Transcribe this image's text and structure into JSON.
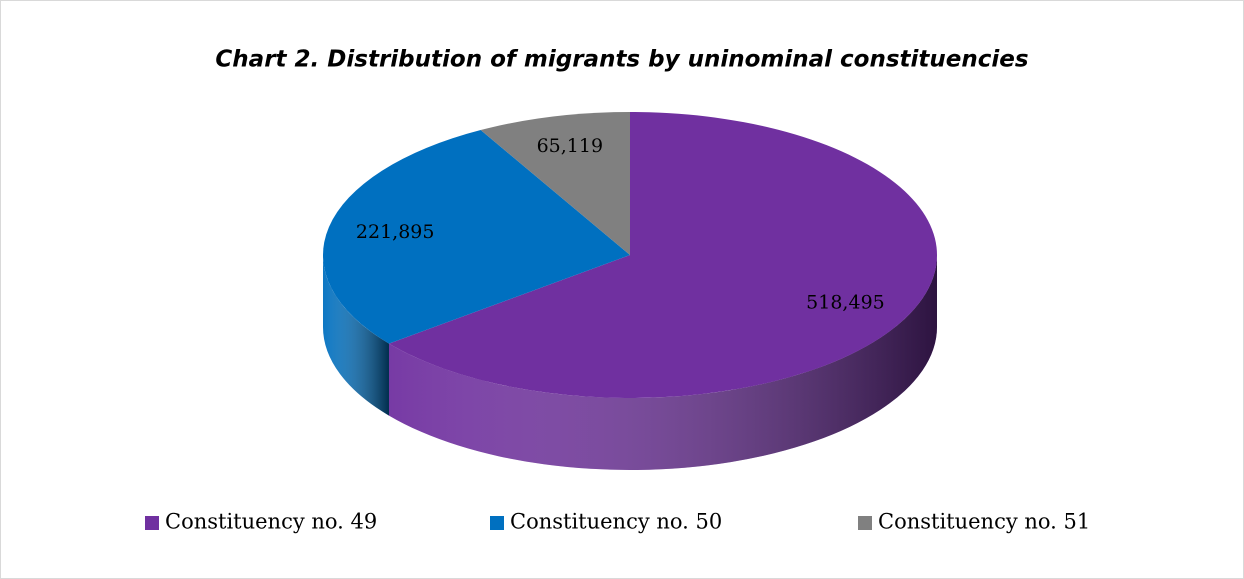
{
  "chart_data": {
    "type": "pie",
    "title": "Chart 2. Distribution of migrants by uninominal constituencies",
    "categories": [
      "Constituency no. 49",
      "Constituency no. 50",
      "Constituency no. 51"
    ],
    "values": [
      518495,
      221895,
      65119
    ],
    "value_labels": [
      "518,495",
      "221,895",
      "65,119"
    ],
    "colors": [
      "#7030a0",
      "#0070c0",
      "#808080"
    ],
    "legend": "bottom"
  }
}
